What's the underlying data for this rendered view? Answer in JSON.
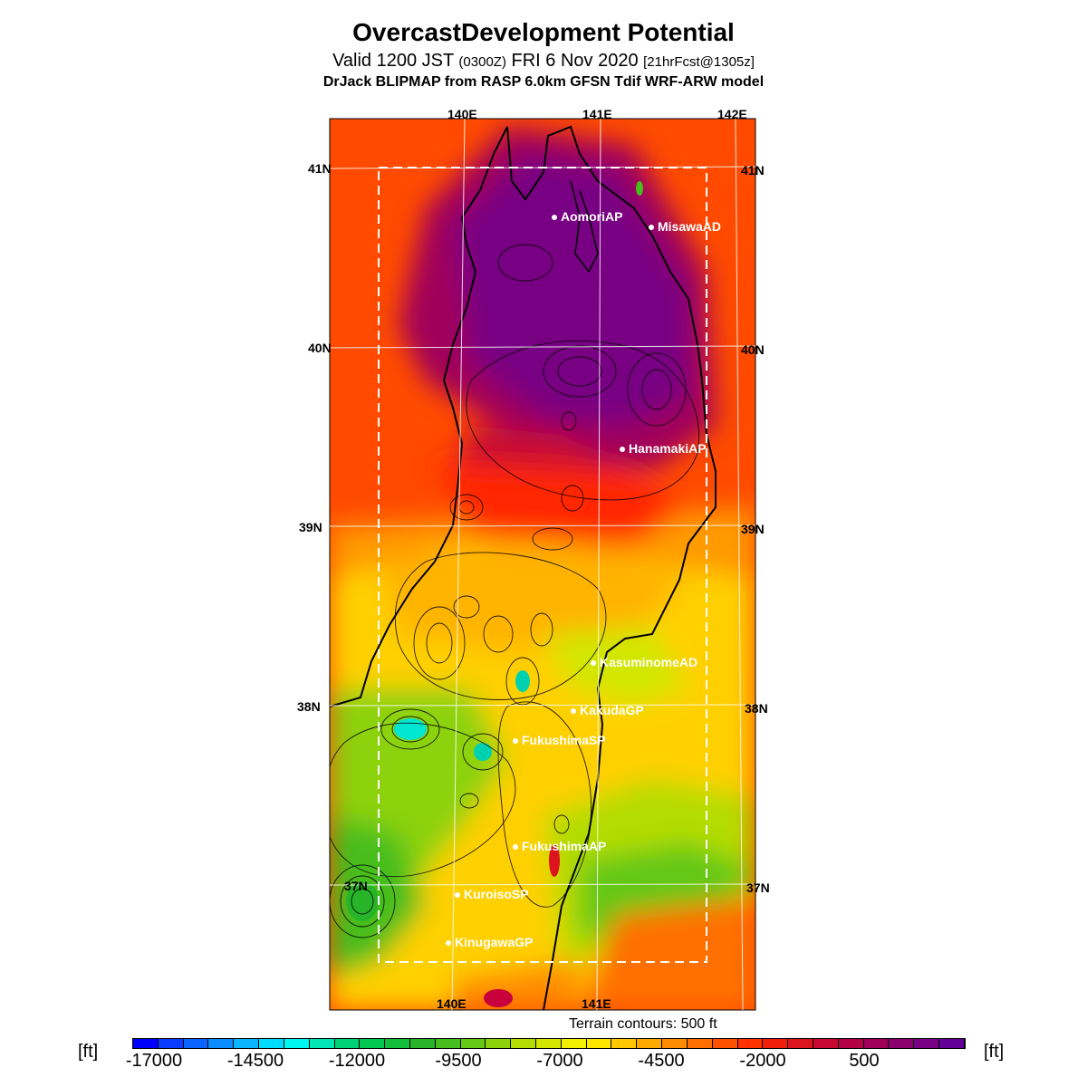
{
  "title": "OvercastDevelopment Potential",
  "subtitle": {
    "prefix": "Valid 1200 JST ",
    "utc": "(0300Z)",
    "mid": " FRI 6 Nov 2020 ",
    "fcst": "[21hrFcst@1305z]"
  },
  "source": "DrJack BLIPMAP from RASP 6.0km GFSN Tdif WRF-ARW model",
  "longitude_labels_top": [
    "140E",
    "141E",
    "142E"
  ],
  "longitude_labels_bottom": [
    "140E",
    "141E"
  ],
  "latitude_labels": [
    "41N",
    "40N",
    "39N",
    "38N",
    "37N"
  ],
  "stations": [
    {
      "name": "AomoriAP"
    },
    {
      "name": "MisawaAD"
    },
    {
      "name": "HanamakiAP"
    },
    {
      "name": "KasuminomeAD"
    },
    {
      "name": "KakudaGP"
    },
    {
      "name": "FukushimaSP"
    },
    {
      "name": "FukushimaAP"
    },
    {
      "name": "KuroisoSP"
    },
    {
      "name": "KinugawaGP"
    }
  ],
  "terrain_note": "Terrain contours: 500 ft",
  "colorbar": {
    "unit": "[ft]",
    "tick_labels": [
      "-17000",
      "-14500",
      "-12000",
      "-9500",
      "-7000",
      "-4500",
      "-2000",
      "500"
    ],
    "colors": [
      "#0000ff",
      "#0a3cff",
      "#0a64ff",
      "#0a8cff",
      "#0ab4ff",
      "#00dcff",
      "#00f5f0",
      "#00e6b4",
      "#00d278",
      "#00c850",
      "#14be3c",
      "#28b428",
      "#46be1e",
      "#64c814",
      "#8cd20a",
      "#b4dc00",
      "#d2e600",
      "#f0f000",
      "#ffe600",
      "#ffc800",
      "#ffaa00",
      "#ff8c00",
      "#ff6e00",
      "#ff5000",
      "#ff3200",
      "#f01e0a",
      "#dc141e",
      "#c80a32",
      "#b40046",
      "#a0005a",
      "#8c006e",
      "#780082",
      "#640096"
    ]
  }
}
